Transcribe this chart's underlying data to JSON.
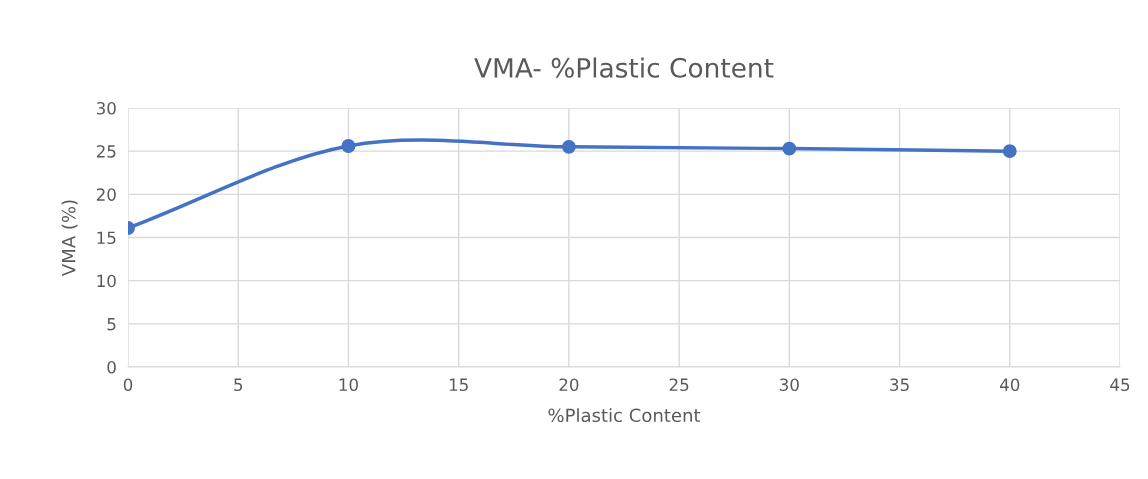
{
  "chart_data": {
    "type": "line",
    "title": "VMA- %Plastic Content",
    "xlabel": "%Plastic Content",
    "ylabel": "VMA (%)",
    "x": [
      0,
      10,
      20,
      30,
      40
    ],
    "series": [
      {
        "color": "#4472c4",
        "values": [
          16.1,
          25.6,
          25.5,
          25.3,
          25.0
        ]
      }
    ],
    "xlim": [
      0,
      45
    ],
    "xticks": [
      0,
      5,
      10,
      15,
      20,
      25,
      30,
      35,
      40,
      45
    ],
    "ylim": [
      0,
      30
    ],
    "yticks": [
      0,
      5,
      10,
      15,
      20,
      25,
      30
    ],
    "grid": true,
    "marker": "circle",
    "line_style": "solid"
  }
}
